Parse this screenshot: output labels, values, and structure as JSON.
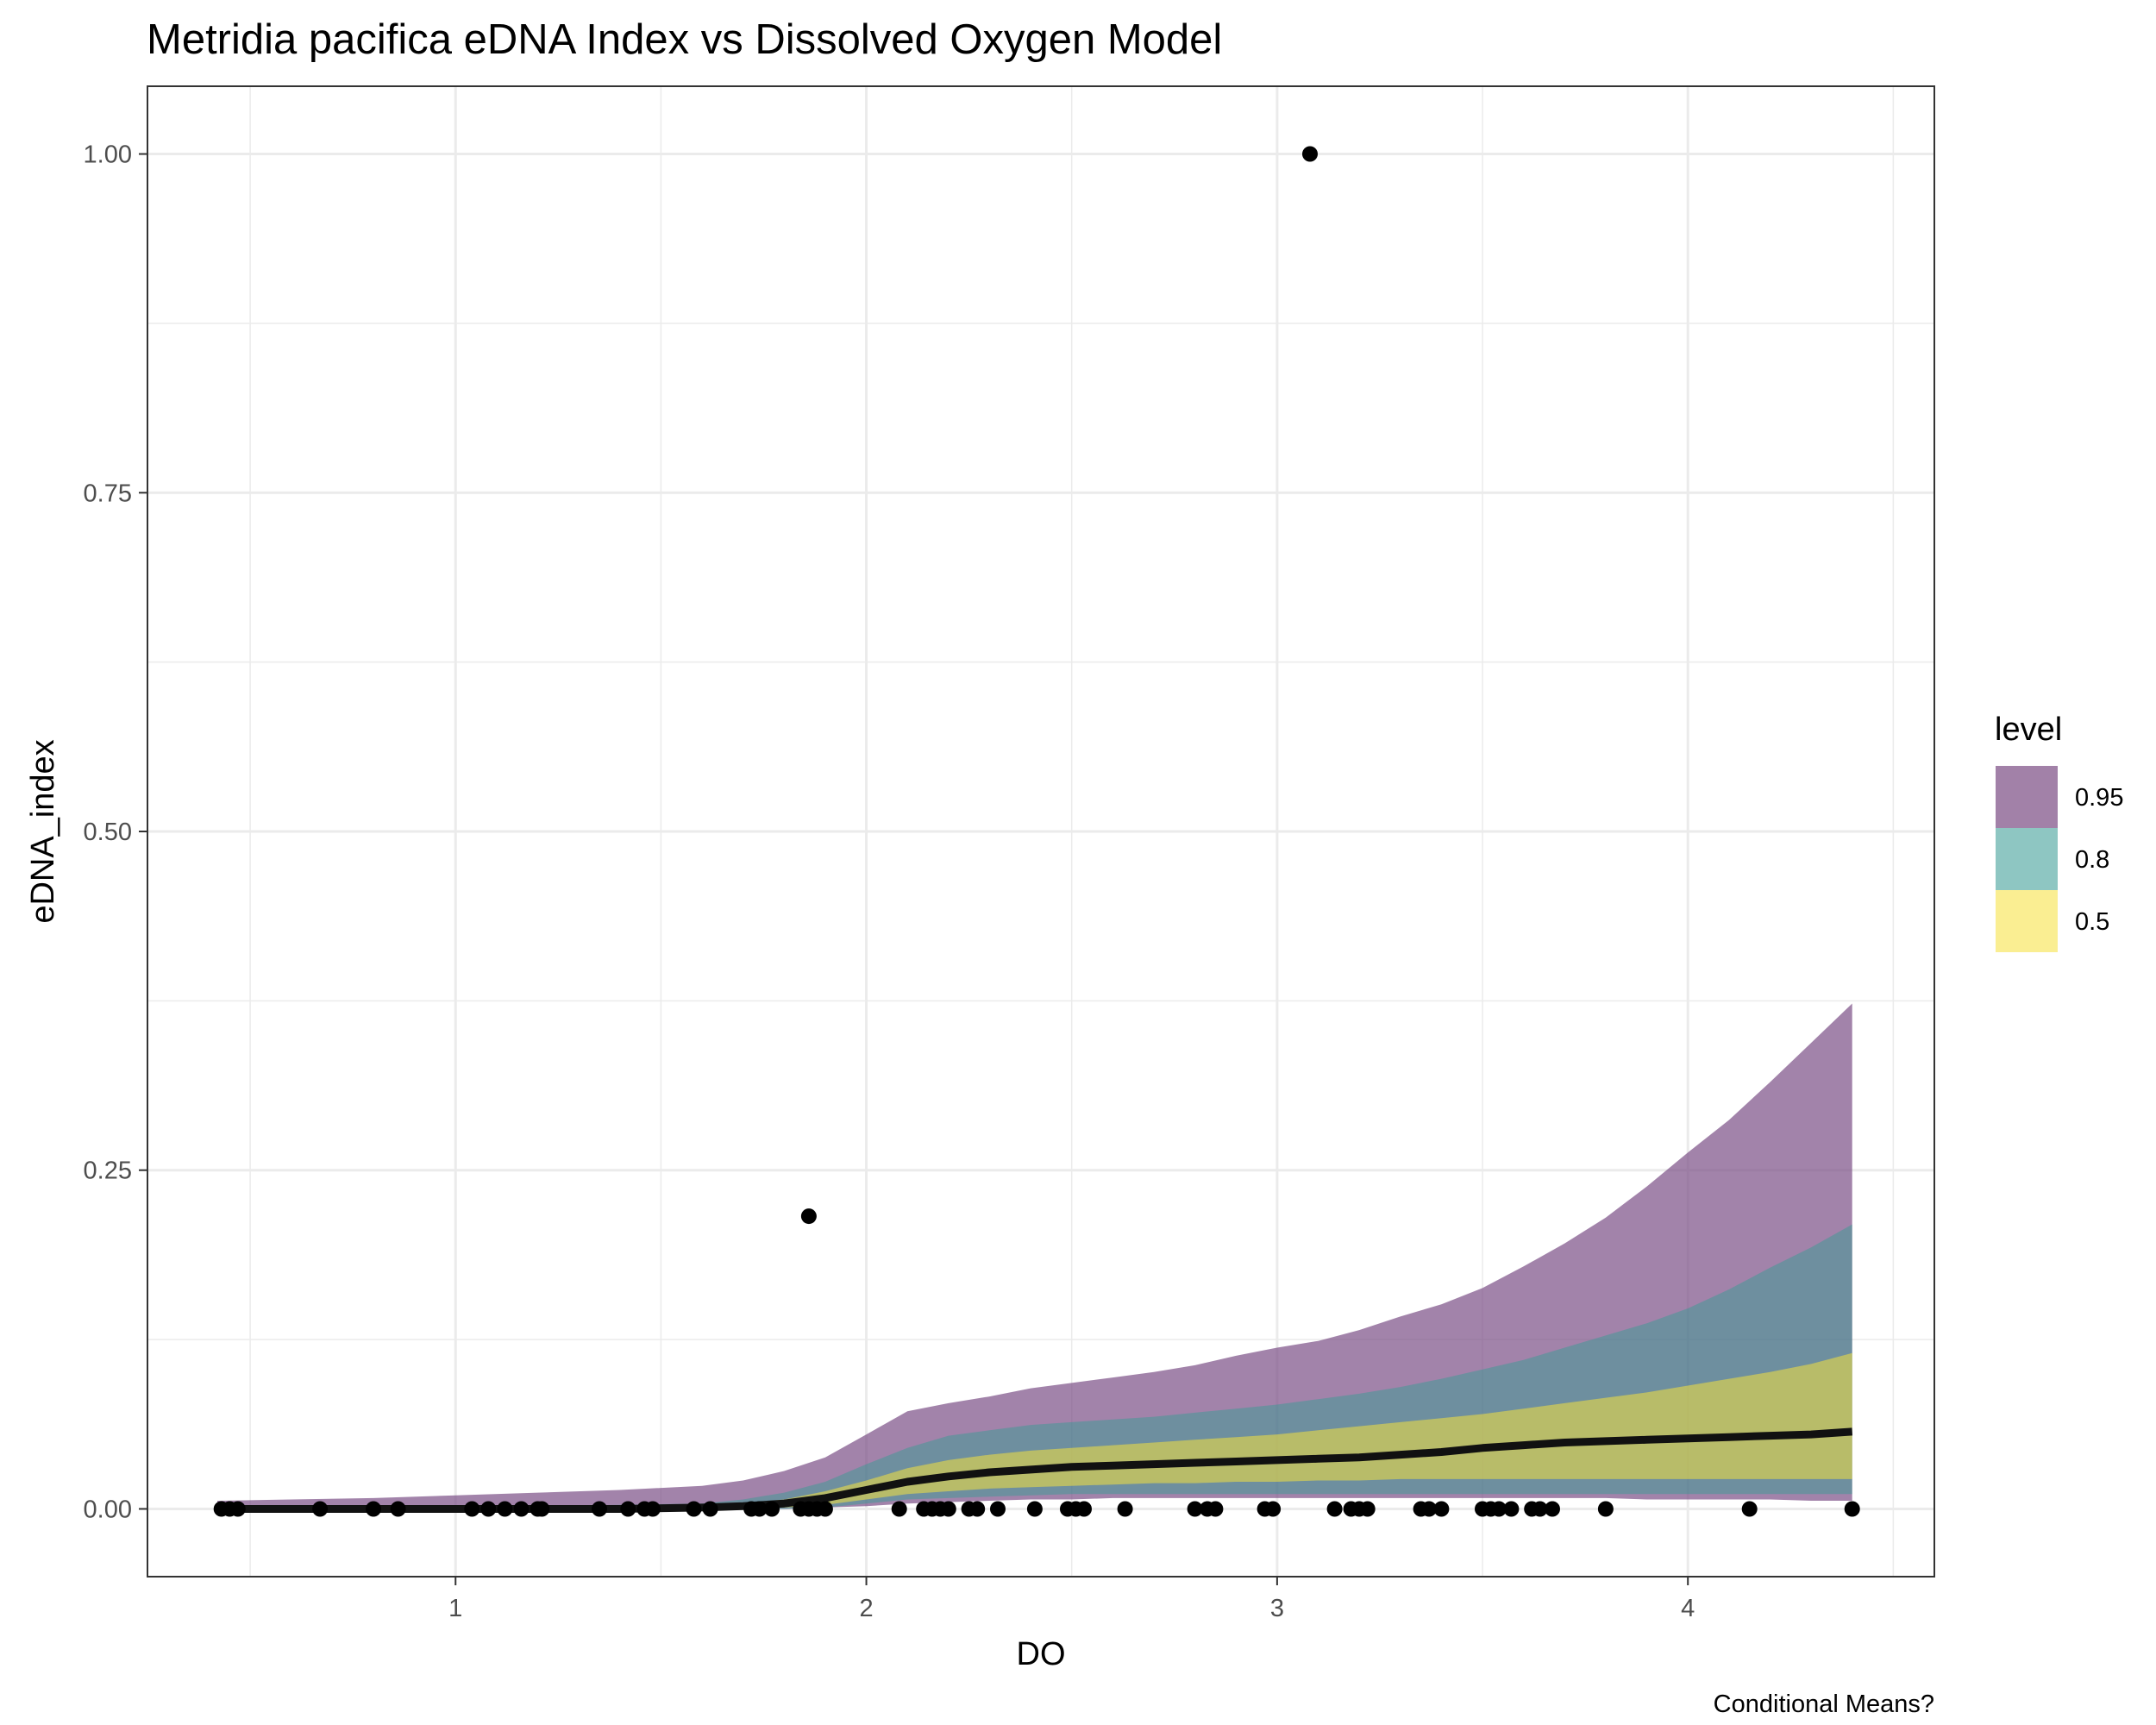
{
  "chart_data": {
    "type": "line",
    "title": "Metridia pacifica eDNA Index vs Dissolved Oxygen Model",
    "xlabel": "DO",
    "ylabel": "eDNA_index",
    "caption": "Conditional Means?",
    "xlim": [
      0.25,
      4.6
    ],
    "ylim": [
      -0.05,
      1.05
    ],
    "x_ticks": [
      1,
      2,
      3,
      4
    ],
    "y_ticks": [
      0.0,
      0.25,
      0.5,
      0.75,
      1.0
    ],
    "y_tick_labels": [
      "0.00",
      "0.25",
      "0.50",
      "0.75",
      "1.00"
    ],
    "grid": true,
    "legend": {
      "title": "level",
      "position": "right",
      "entries": [
        {
          "label": "0.95",
          "color": "#a281a8"
        },
        {
          "label": "0.8",
          "color": "#8ec6c2"
        },
        {
          "label": "0.5",
          "color": "#faee92"
        }
      ]
    },
    "colors": {
      "band_95": "#a281a8",
      "band_80": "#5f8a9a",
      "band_50": "#adb95f",
      "line": "#111111",
      "points": "#000000",
      "grid": "#ebebeb",
      "panel_border": "#333333"
    },
    "line": {
      "x": [
        0.42,
        0.6,
        0.8,
        1.0,
        1.2,
        1.4,
        1.6,
        1.7,
        1.8,
        1.9,
        2.0,
        2.1,
        2.2,
        2.3,
        2.4,
        2.5,
        2.6,
        2.7,
        2.8,
        2.9,
        3.0,
        3.1,
        3.2,
        3.3,
        3.4,
        3.5,
        3.6,
        3.7,
        3.8,
        3.9,
        4.0,
        4.1,
        4.2,
        4.3,
        4.4
      ],
      "y": [
        0.0,
        0.0,
        0.0,
        0.0,
        0.0,
        0.0,
        0.001,
        0.002,
        0.004,
        0.008,
        0.014,
        0.02,
        0.024,
        0.027,
        0.029,
        0.031,
        0.032,
        0.033,
        0.034,
        0.035,
        0.036,
        0.037,
        0.038,
        0.04,
        0.042,
        0.045,
        0.047,
        0.049,
        0.05,
        0.051,
        0.052,
        0.053,
        0.054,
        0.055,
        0.057
      ]
    },
    "bands": [
      {
        "level": "0.95",
        "upper": [
          0.006,
          0.007,
          0.008,
          0.01,
          0.012,
          0.014,
          0.017,
          0.021,
          0.028,
          0.038,
          0.055,
          0.072,
          0.078,
          0.083,
          0.089,
          0.093,
          0.097,
          0.101,
          0.106,
          0.113,
          0.119,
          0.124,
          0.132,
          0.142,
          0.151,
          0.163,
          0.179,
          0.196,
          0.215,
          0.238,
          0.263,
          0.287,
          0.315,
          0.344,
          0.373
        ],
        "lower": [
          0.0,
          0.0,
          0.0,
          0.0,
          0.0,
          0.0,
          0.0,
          0.0,
          0.0,
          0.001,
          0.002,
          0.004,
          0.005,
          0.006,
          0.007,
          0.007,
          0.008,
          0.008,
          0.008,
          0.008,
          0.008,
          0.008,
          0.008,
          0.008,
          0.008,
          0.008,
          0.008,
          0.008,
          0.008,
          0.007,
          0.007,
          0.007,
          0.007,
          0.006,
          0.006
        ]
      },
      {
        "level": "0.8",
        "upper": [
          0.001,
          0.001,
          0.001,
          0.001,
          0.002,
          0.003,
          0.004,
          0.007,
          0.012,
          0.02,
          0.033,
          0.045,
          0.054,
          0.058,
          0.062,
          0.064,
          0.066,
          0.068,
          0.071,
          0.074,
          0.077,
          0.081,
          0.085,
          0.09,
          0.096,
          0.103,
          0.11,
          0.119,
          0.128,
          0.137,
          0.148,
          0.162,
          0.178,
          0.193,
          0.21
        ],
        "lower": [
          0.0,
          0.0,
          0.0,
          0.0,
          0.0,
          0.0,
          0.0,
          0.0,
          0.0,
          0.001,
          0.004,
          0.007,
          0.008,
          0.009,
          0.01,
          0.011,
          0.011,
          0.011,
          0.011,
          0.011,
          0.011,
          0.011,
          0.011,
          0.011,
          0.011,
          0.011,
          0.011,
          0.011,
          0.011,
          0.011,
          0.011,
          0.011,
          0.011,
          0.011,
          0.011
        ]
      },
      {
        "level": "0.5",
        "upper": [
          0.0,
          0.0,
          0.0,
          0.0,
          0.0,
          0.001,
          0.002,
          0.004,
          0.007,
          0.013,
          0.021,
          0.03,
          0.036,
          0.04,
          0.043,
          0.045,
          0.047,
          0.049,
          0.051,
          0.053,
          0.055,
          0.058,
          0.061,
          0.064,
          0.067,
          0.07,
          0.074,
          0.078,
          0.082,
          0.086,
          0.091,
          0.096,
          0.101,
          0.107,
          0.115
        ],
        "lower": [
          0.0,
          0.0,
          0.0,
          0.0,
          0.0,
          0.0,
          0.0,
          0.0,
          0.001,
          0.003,
          0.007,
          0.011,
          0.013,
          0.015,
          0.016,
          0.017,
          0.018,
          0.019,
          0.019,
          0.02,
          0.02,
          0.021,
          0.021,
          0.022,
          0.022,
          0.022,
          0.022,
          0.022,
          0.022,
          0.022,
          0.022,
          0.022,
          0.022,
          0.022,
          0.022
        ]
      }
    ],
    "points": {
      "x": [
        0.43,
        0.45,
        0.47,
        0.67,
        0.8,
        0.86,
        1.04,
        1.08,
        1.12,
        1.16,
        1.2,
        1.21,
        1.35,
        1.42,
        1.46,
        1.48,
        1.58,
        1.62,
        1.72,
        1.74,
        1.77,
        1.84,
        1.86,
        1.88,
        1.9,
        2.08,
        2.14,
        2.16,
        2.18,
        2.2,
        2.25,
        2.27,
        2.32,
        2.41,
        2.49,
        2.51,
        2.53,
        2.63,
        2.8,
        2.83,
        2.85,
        2.97,
        2.99,
        3.14,
        3.18,
        3.2,
        3.22,
        3.35,
        3.37,
        3.4,
        3.5,
        3.52,
        3.54,
        3.57,
        3.62,
        3.64,
        3.67,
        3.8,
        4.15,
        4.4,
        1.86,
        3.08
      ],
      "y": [
        0,
        0,
        0,
        0,
        0,
        0,
        0,
        0,
        0,
        0,
        0,
        0,
        0,
        0,
        0,
        0,
        0,
        0,
        0,
        0,
        0,
        0,
        0,
        0,
        0,
        0,
        0,
        0,
        0,
        0,
        0,
        0,
        0,
        0,
        0,
        0,
        0,
        0,
        0,
        0,
        0,
        0,
        0,
        0,
        0,
        0,
        0,
        0,
        0,
        0,
        0,
        0,
        0,
        0,
        0,
        0,
        0,
        0,
        0,
        0,
        0.216,
        1.0
      ]
    }
  }
}
